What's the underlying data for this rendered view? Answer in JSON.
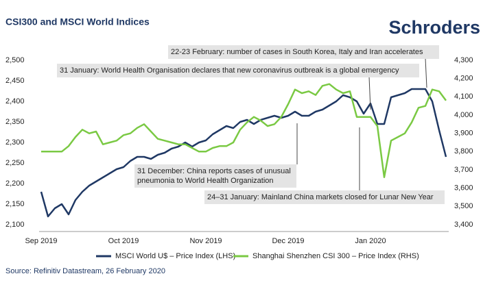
{
  "chart_data": {
    "type": "line",
    "title": "CSI300 and MSCI World Indices",
    "brand": "Schroders",
    "source": "Source: Refinitiv Datastream, 26 February 2020",
    "categories": [
      "Sep 2019",
      null,
      null,
      null,
      null,
      null,
      null,
      null,
      null,
      null,
      null,
      null,
      "Oct 2019",
      null,
      null,
      null,
      null,
      null,
      null,
      null,
      null,
      null,
      null,
      null,
      "Nov 2019",
      null,
      null,
      null,
      null,
      null,
      null,
      null,
      null,
      null,
      null,
      null,
      "Dec 2019",
      null,
      null,
      null,
      null,
      null,
      null,
      null,
      null,
      null,
      null,
      null,
      "Jan 2020",
      null,
      null,
      null,
      null,
      null,
      null,
      null,
      null,
      null,
      null,
      null
    ],
    "series": [
      {
        "name": "MSCI World U$ – Price Index (LHS)",
        "color": "#1f3864",
        "axis": "y",
        "values": [
          2180,
          2120,
          2140,
          2150,
          2125,
          2160,
          2180,
          2195,
          2205,
          2215,
          2225,
          2235,
          2240,
          2255,
          2265,
          2265,
          2260,
          2270,
          2275,
          2285,
          2290,
          2300,
          2290,
          2300,
          2305,
          2320,
          2330,
          2340,
          2335,
          2350,
          2355,
          2345,
          2355,
          2360,
          2365,
          2360,
          2365,
          2375,
          2365,
          2365,
          2375,
          2380,
          2390,
          2400,
          2415,
          2410,
          2400,
          2370,
          2395,
          2345,
          2345,
          2410,
          2415,
          2420,
          2430,
          2430,
          2430,
          2400,
          2330,
          2265
        ]
      },
      {
        "name": "Shanghai Shenzhen CSI 300 – Price Index (RHS)",
        "color": "#7ac943",
        "axis": "y2",
        "values": [
          3800,
          3800,
          3800,
          3800,
          3830,
          3880,
          3920,
          3900,
          3910,
          3840,
          3850,
          3860,
          3890,
          3900,
          3930,
          3950,
          3910,
          3870,
          3860,
          3850,
          3840,
          3840,
          3820,
          3800,
          3800,
          3820,
          3830,
          3830,
          3850,
          3920,
          3960,
          3990,
          3970,
          3940,
          3950,
          3990,
          4060,
          4140,
          4120,
          4130,
          4110,
          4160,
          4170,
          4140,
          4120,
          4130,
          3990,
          3990,
          3990,
          3940,
          3660,
          3860,
          3880,
          3900,
          3960,
          4040,
          4050,
          4140,
          4130,
          4080
        ]
      }
    ],
    "ylim": [
      2100,
      2500
    ],
    "yticks": [
      {
        "value": 2100,
        "label": "2,100"
      },
      {
        "value": 2150,
        "label": "2,150"
      },
      {
        "value": 2200,
        "label": "2,200"
      },
      {
        "value": 2250,
        "label": "2,250"
      },
      {
        "value": 2300,
        "label": "2,300"
      },
      {
        "value": 2350,
        "label": "2,350"
      },
      {
        "value": 2400,
        "label": "2,400"
      },
      {
        "value": 2450,
        "label": "2,450"
      },
      {
        "value": 2500,
        "label": "2,500"
      }
    ],
    "y2lim": [
      3400,
      4300
    ],
    "y2ticks": [
      {
        "value": 3400,
        "label": "3,400"
      },
      {
        "value": 3500,
        "label": "3,500"
      },
      {
        "value": 3600,
        "label": "3,600"
      },
      {
        "value": 3700,
        "label": "3,700"
      },
      {
        "value": 3800,
        "label": "3,800"
      },
      {
        "value": 3900,
        "label": "3,900"
      },
      {
        "value": 4000,
        "label": "4,000"
      },
      {
        "value": 4100,
        "label": "4,100"
      },
      {
        "value": 4200,
        "label": "4,200"
      },
      {
        "value": 4300,
        "label": "4,300"
      }
    ],
    "annotations": [
      [
        "22-23 February: number of cases in South Korea, Italy and Iran accelerates"
      ],
      [
        "31 January: World Health Organisation declares that new coronavirus outbreak is a global emergency"
      ],
      [
        "31 December: China reports cases of unusual",
        "pneumonia to World Health Organization"
      ],
      [
        "24–31 January: Mainland China markets closed for Lunar New Year"
      ]
    ]
  }
}
